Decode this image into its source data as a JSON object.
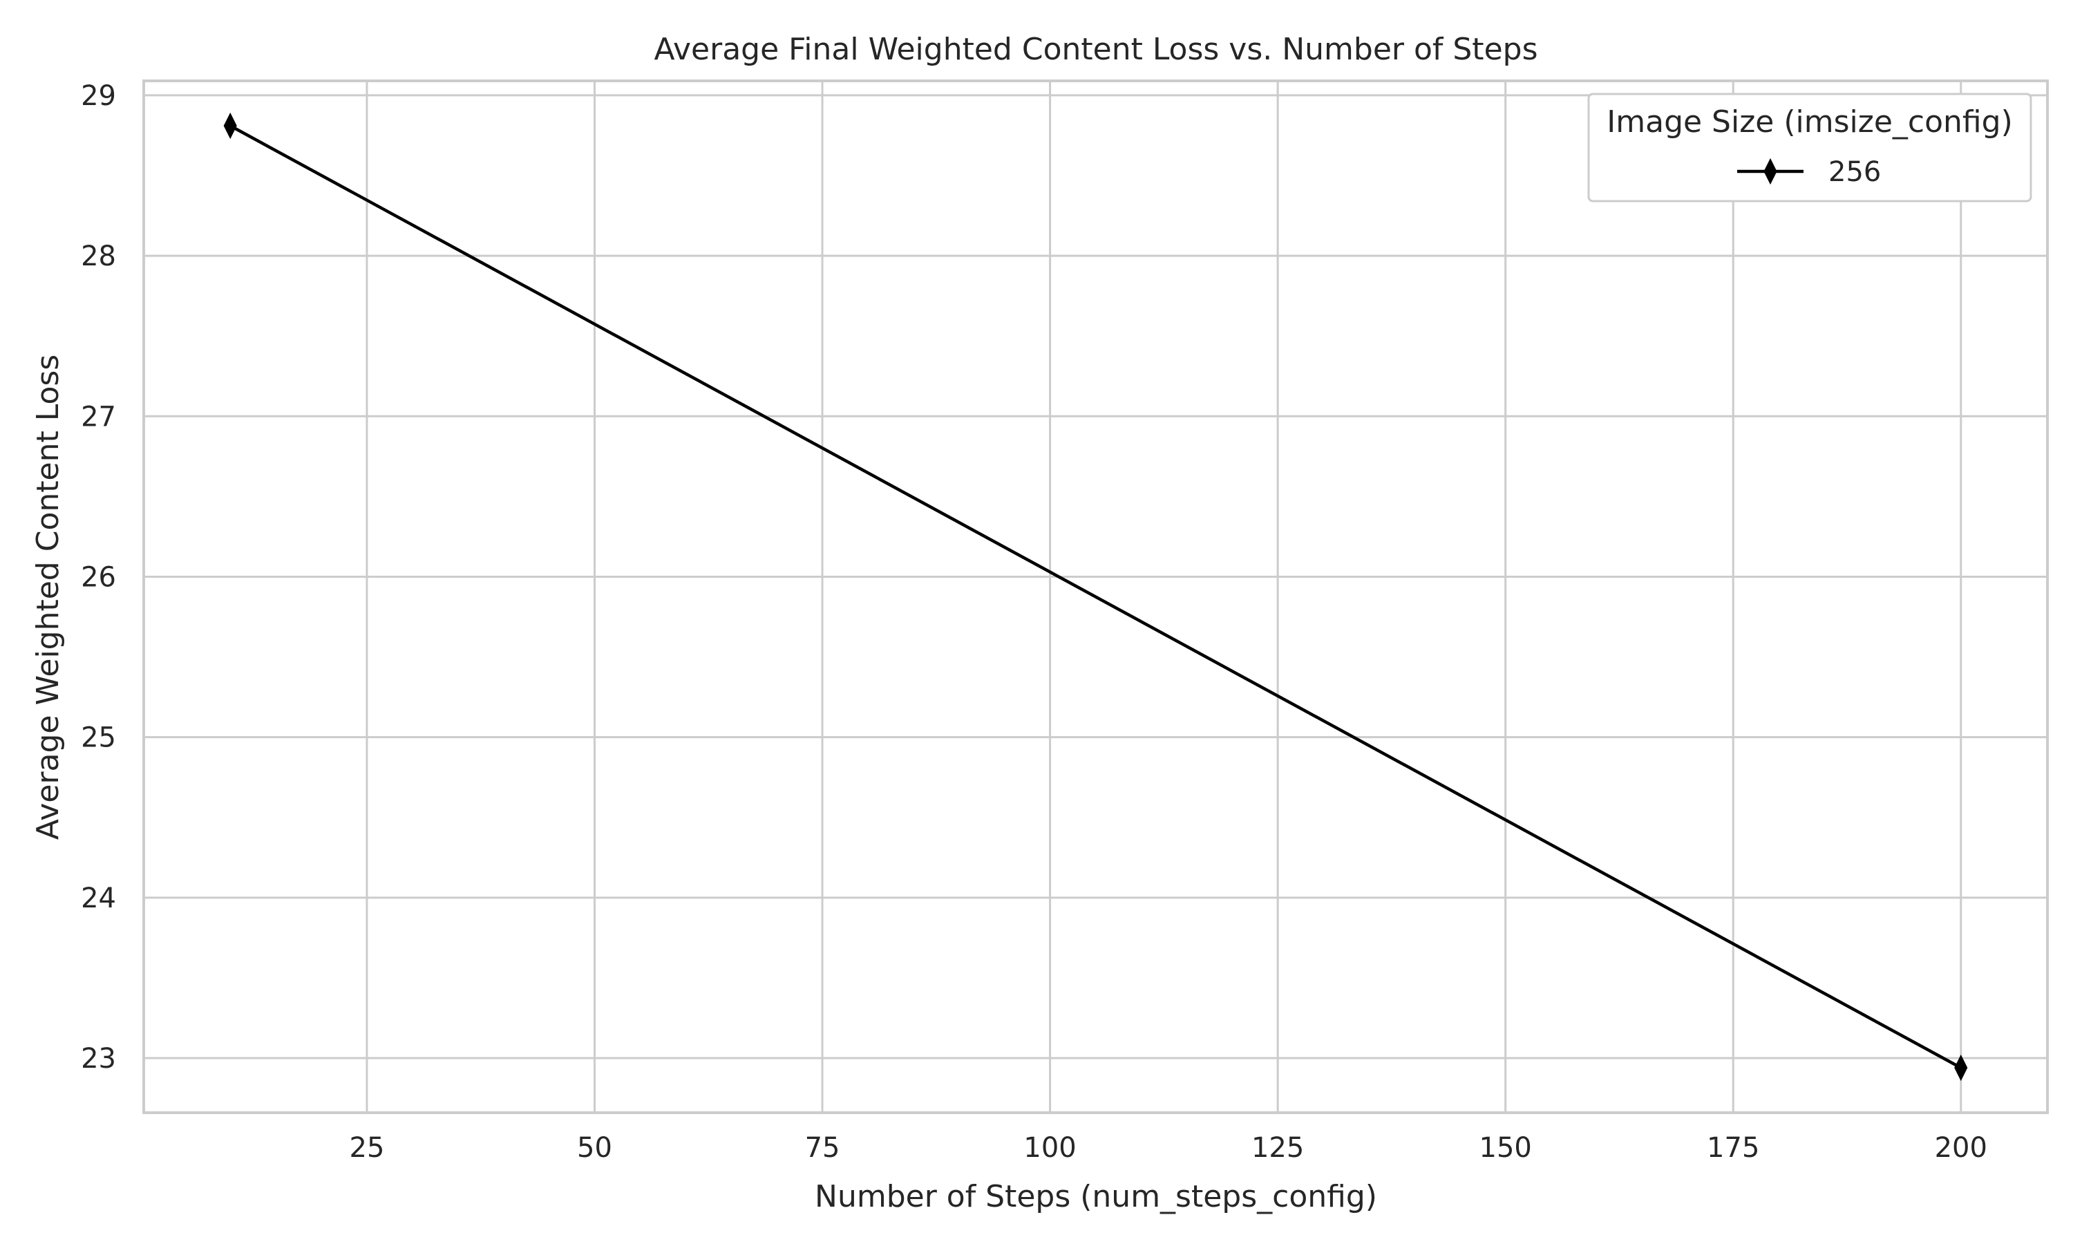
{
  "chart_data": {
    "type": "line",
    "title": "Average Final Weighted Content Loss vs. Number of Steps",
    "xlabel": "Number of Steps (num_steps_config)",
    "ylabel": "Average Weighted Content Loss",
    "xlim": [
      0.5,
      209.5
    ],
    "ylim": [
      22.66,
      29.09
    ],
    "xticks": [
      25,
      50,
      75,
      100,
      125,
      150,
      175,
      200
    ],
    "yticks": [
      23,
      24,
      25,
      26,
      27,
      28,
      29
    ],
    "xtick_labels": [
      "25",
      "50",
      "75",
      "100",
      "125",
      "150",
      "175",
      "200"
    ],
    "ytick_labels": [
      "23",
      "24",
      "25",
      "26",
      "27",
      "28",
      "29"
    ],
    "grid": true,
    "legend": {
      "title": "Image Size (imsize_config)",
      "position": "top-right"
    },
    "series": [
      {
        "name": "256",
        "color": "#000000",
        "marker": "thin-diamond",
        "x": [
          10,
          200
        ],
        "y": [
          28.81,
          22.94
        ]
      }
    ]
  }
}
